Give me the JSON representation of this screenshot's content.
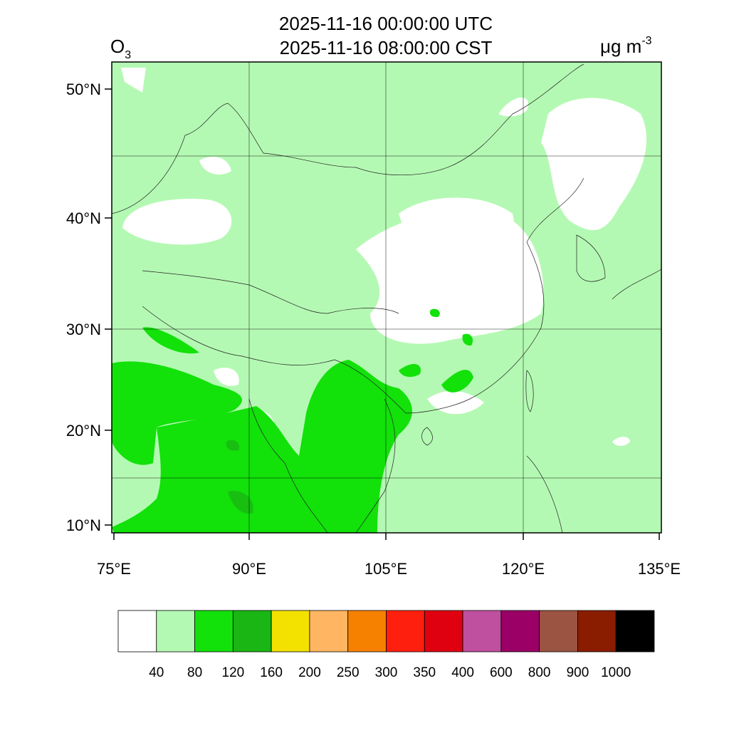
{
  "header": {
    "title_utc": "2025-11-16 00:00:00 UTC",
    "title_cst": "2025-11-16 08:00:00 CST",
    "variable": "O",
    "variable_subscript": "3",
    "units": "μg m",
    "units_exponent": "-3"
  },
  "map": {
    "lat_labels": [
      "50°N",
      "40°N",
      "30°N",
      "20°N",
      "10°N"
    ],
    "lon_labels": [
      "75°E",
      "90°E",
      "105°E",
      "120°E",
      "135°E"
    ]
  },
  "colorbar": {
    "colors": [
      "#ffffff",
      "#b4f9b3",
      "#12e10a",
      "#1ab613",
      "#f3e100",
      "#ffb561",
      "#f68100",
      "#ff1f0e",
      "#df0010",
      "#bf4f9f",
      "#9a0066",
      "#9b5442",
      "#8a1d00",
      "#000000"
    ],
    "labels": [
      "40",
      "80",
      "120",
      "160",
      "200",
      "250",
      "300",
      "350",
      "400",
      "600",
      "800",
      "900",
      "1000"
    ]
  }
}
